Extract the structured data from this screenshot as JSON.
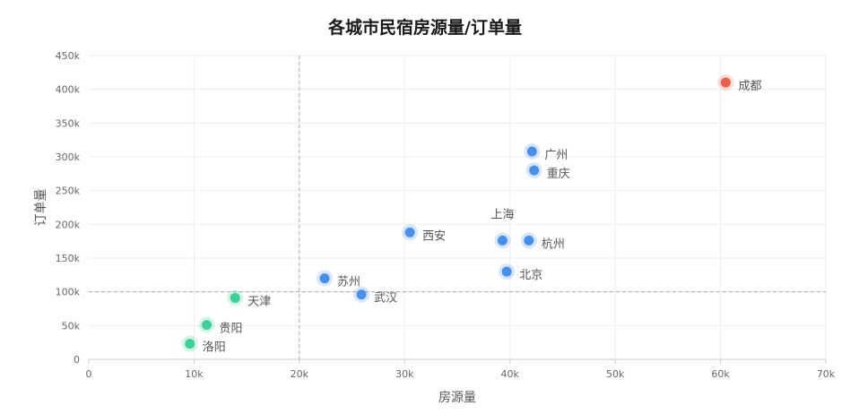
{
  "chart_data": {
    "type": "scatter",
    "title": "各城市民宿房源量/订单量",
    "xlabel": "房源量",
    "ylabel": "订单量",
    "xlim": [
      0,
      70000
    ],
    "ylim": [
      0,
      450000
    ],
    "x_ticks": [
      "0",
      "10k",
      "20k",
      "30k",
      "40k",
      "50k",
      "60k",
      "70k"
    ],
    "y_ticks": [
      "0",
      "50k",
      "100k",
      "150k",
      "200k",
      "250k",
      "300k",
      "350k",
      "400k",
      "450k"
    ],
    "reference_lines": {
      "x": 20000,
      "y": 100000
    },
    "grid": true,
    "colors": {
      "high": "#e8604c",
      "mid": "#4a8fe7",
      "low": "#3ecf9a"
    },
    "points": [
      {
        "name": "成都",
        "x": 60500,
        "y": 410000,
        "group": "high"
      },
      {
        "name": "广州",
        "x": 42100,
        "y": 308000,
        "group": "mid"
      },
      {
        "name": "重庆",
        "x": 42300,
        "y": 280000,
        "group": "mid"
      },
      {
        "name": "上海",
        "x": 39300,
        "y": 176000,
        "group": "mid"
      },
      {
        "name": "杭州",
        "x": 41800,
        "y": 176000,
        "group": "mid"
      },
      {
        "name": "北京",
        "x": 39700,
        "y": 130000,
        "group": "mid"
      },
      {
        "name": "西安",
        "x": 30500,
        "y": 188000,
        "group": "mid"
      },
      {
        "name": "苏州",
        "x": 22400,
        "y": 120000,
        "group": "mid"
      },
      {
        "name": "武汉",
        "x": 25900,
        "y": 96000,
        "group": "mid"
      },
      {
        "name": "天津",
        "x": 13900,
        "y": 91000,
        "group": "low"
      },
      {
        "name": "贵阳",
        "x": 11200,
        "y": 51000,
        "group": "low"
      },
      {
        "name": "洛阳",
        "x": 9600,
        "y": 23000,
        "group": "low"
      }
    ]
  }
}
